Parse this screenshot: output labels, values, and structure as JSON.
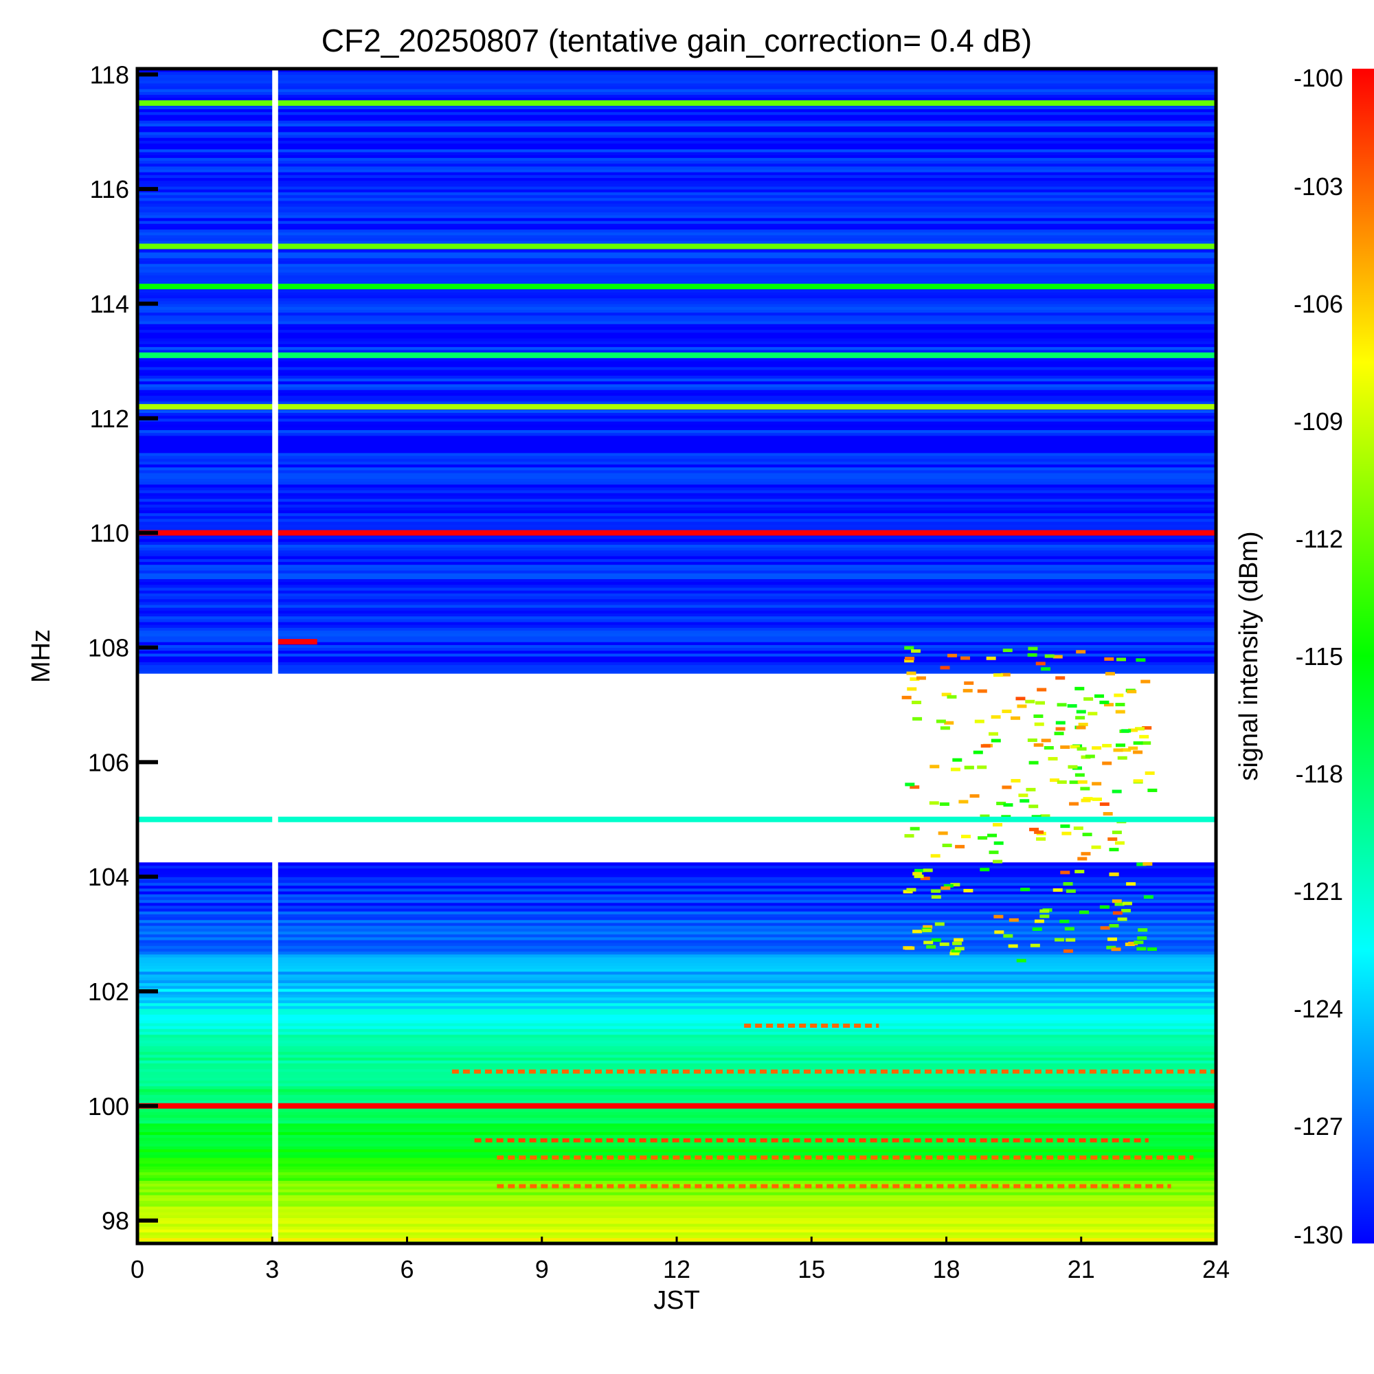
{
  "chart_data": {
    "type": "heatmap",
    "title": "CF2_20250807 (tentative gain_correction=  0.4 dB)",
    "xlabel": "JST",
    "ylabel": "MHz",
    "colorbar_label": "signal intensity (dBm)",
    "x_range": [
      0,
      24
    ],
    "y_range": [
      97.6,
      118.1
    ],
    "x_ticks": [
      0,
      3,
      6,
      9,
      12,
      15,
      18,
      21,
      24
    ],
    "x_tick_labels": [
      "0",
      "3",
      "6",
      "9",
      "12",
      "15",
      "18",
      "21",
      "24"
    ],
    "y_ticks": [
      98,
      100,
      102,
      104,
      106,
      108,
      110,
      112,
      114,
      116,
      118
    ],
    "y_tick_labels": [
      "98",
      "100",
      "102",
      "104",
      "106",
      "108",
      "110",
      "112",
      "114",
      "116",
      "118"
    ],
    "color_range": [
      -130,
      -100
    ],
    "colorbar_ticks": [
      -100,
      -103,
      -106,
      -109,
      -112,
      -115,
      -118,
      -121,
      -124,
      -127,
      -130
    ],
    "colorbar_tick_labels": [
      "-100",
      "-103",
      "-106",
      "-109",
      "-112",
      "-115",
      "-118",
      "-121",
      "-124",
      "-127",
      "-130"
    ],
    "colormap": [
      "#0000ff",
      "#0080ff",
      "#00ffff",
      "#00ff80",
      "#00ff00",
      "#80ff00",
      "#ffff00",
      "#ff8000",
      "#ff0000"
    ],
    "data_gap": {
      "start_hour": 3.0,
      "end_hour": 3.1
    },
    "baseline_profile_mhz_dbm": [
      [
        97.6,
        -108
      ],
      [
        98.5,
        -111
      ],
      [
        99.0,
        -115
      ],
      [
        100.0,
        -118
      ],
      [
        101.0,
        -120
      ],
      [
        102.0,
        -124
      ],
      [
        103.0,
        -127
      ],
      [
        103.8,
        -129
      ],
      [
        108.0,
        -129
      ],
      [
        118.1,
        -129
      ]
    ],
    "saturated_band_mhz": [
      104.2,
      107.5
    ],
    "strong_carriers": [
      {
        "mhz": 100.0,
        "dbm": -100,
        "start_hour": 0,
        "end_hour": 24
      },
      {
        "mhz": 110.0,
        "dbm": -100,
        "start_hour": 0,
        "end_hour": 24
      },
      {
        "mhz": 105.0,
        "dbm": -121,
        "start_hour": 0,
        "end_hour": 24
      },
      {
        "mhz": 112.2,
        "dbm": -110,
        "start_hour": 0,
        "end_hour": 24
      },
      {
        "mhz": 117.5,
        "dbm": -112,
        "start_hour": 0,
        "end_hour": 24
      },
      {
        "mhz": 115.0,
        "dbm": -112,
        "start_hour": 0,
        "end_hour": 24
      },
      {
        "mhz": 114.3,
        "dbm": -115,
        "start_hour": 0,
        "end_hour": 24
      },
      {
        "mhz": 113.1,
        "dbm": -118,
        "start_hour": 0,
        "end_hour": 24
      },
      {
        "mhz": 108.1,
        "dbm": -100,
        "start_hour": 3.1,
        "end_hour": 4.0
      }
    ],
    "intermittent_bands": [
      {
        "mhz": 99.4,
        "dbm": -102,
        "start_hour": 7.5,
        "end_hour": 22.5
      },
      {
        "mhz": 98.6,
        "dbm": -103,
        "start_hour": 8.0,
        "end_hour": 23.0
      },
      {
        "mhz": 99.1,
        "dbm": -103,
        "start_hour": 8.0,
        "end_hour": 23.5
      },
      {
        "mhz": 100.6,
        "dbm": -103,
        "start_hour": 7.0,
        "end_hour": 24.0
      },
      {
        "mhz": 101.4,
        "dbm": -103,
        "start_hour": 13.5,
        "end_hour": 16.5
      }
    ],
    "evening_activity": {
      "start_hour": 17.0,
      "end_hour": 22.5,
      "min_mhz": 102.5,
      "max_mhz": 108.0,
      "dbm": -109
    }
  }
}
